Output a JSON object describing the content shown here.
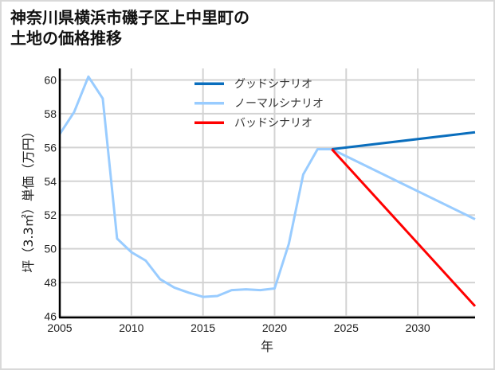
{
  "chart_data": {
    "type": "line",
    "title": "神奈川県横浜市磯子区上中里町の土地の価格推移",
    "title_lines": [
      "神奈川県横浜市磯子区上中里町の",
      "土地の価格推移"
    ],
    "xlabel": "年",
    "ylabel": "坪（3.3㎡）単価（万円）",
    "xlim": [
      2005,
      2034
    ],
    "ylim": [
      46,
      60.5
    ],
    "x_ticks": [
      2005,
      2010,
      2015,
      2020,
      2025,
      2030
    ],
    "y_ticks": [
      46,
      48,
      50,
      52,
      54,
      56,
      58,
      60
    ],
    "grid": true,
    "legend_position": "upper center",
    "series": [
      {
        "name": "グッドシナリオ",
        "color": "#0a6ebd",
        "x": [
          2024,
          2034
        ],
        "values": [
          55.9,
          56.9
        ]
      },
      {
        "name": "ノーマルシナリオ",
        "color": "#99ccff",
        "x": [
          2005,
          2006,
          2007,
          2008,
          2009,
          2010,
          2011,
          2012,
          2013,
          2014,
          2015,
          2016,
          2017,
          2018,
          2019,
          2020,
          2021,
          2022,
          2023,
          2024,
          2034
        ],
        "values": [
          56.8,
          58.1,
          60.2,
          58.9,
          50.6,
          49.8,
          49.3,
          48.2,
          47.7,
          47.4,
          47.15,
          47.2,
          47.55,
          47.6,
          47.55,
          47.65,
          50.3,
          54.4,
          55.9,
          55.9,
          51.75
        ]
      },
      {
        "name": "バッドシナリオ",
        "color": "#ff0000",
        "x": [
          2024,
          2034
        ],
        "values": [
          55.9,
          46.6
        ]
      }
    ]
  }
}
